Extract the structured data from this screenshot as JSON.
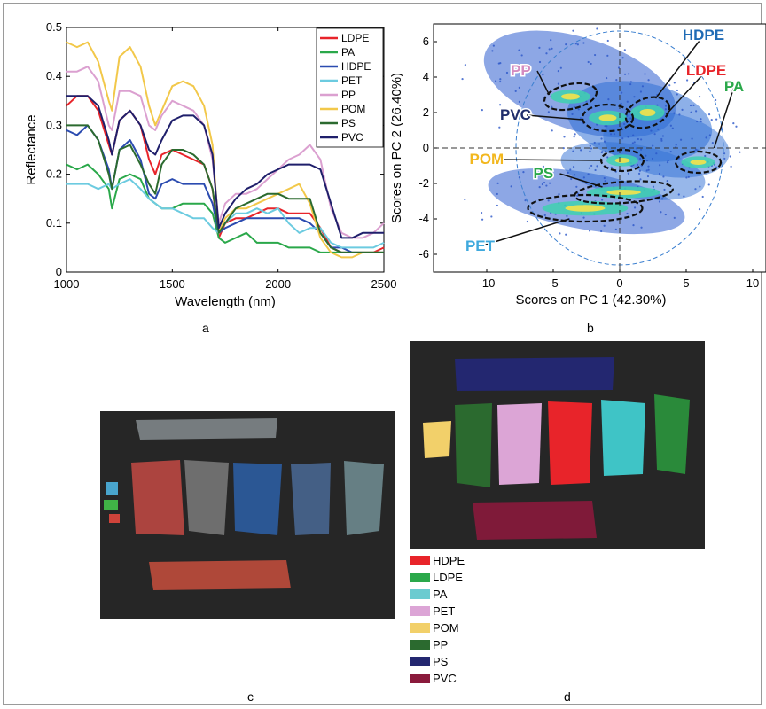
{
  "chart_data": [
    {
      "id": "a",
      "type": "line",
      "xlabel": "Wavelength (nm)",
      "ylabel": "Reflectance",
      "xlim": [
        1000,
        2500
      ],
      "ylim": [
        0,
        0.5
      ],
      "xticks": [
        1000,
        1500,
        2000,
        2500
      ],
      "yticks": [
        0,
        0.1,
        0.2,
        0.3,
        0.4,
        0.5
      ],
      "legend_position": "top-right",
      "x": [
        1000,
        1050,
        1100,
        1150,
        1200,
        1215,
        1250,
        1300,
        1350,
        1390,
        1420,
        1450,
        1500,
        1550,
        1600,
        1650,
        1690,
        1720,
        1750,
        1800,
        1850,
        1900,
        1950,
        2000,
        2050,
        2100,
        2150,
        2200,
        2250,
        2300,
        2350,
        2400,
        2450,
        2500
      ],
      "series": [
        {
          "name": "LDPE",
          "color": "#e8242a",
          "values": [
            0.34,
            0.36,
            0.36,
            0.33,
            0.26,
            0.24,
            0.31,
            0.33,
            0.3,
            0.23,
            0.2,
            0.24,
            0.25,
            0.24,
            0.23,
            0.22,
            0.17,
            0.07,
            0.1,
            0.11,
            0.11,
            0.12,
            0.13,
            0.13,
            0.12,
            0.12,
            0.12,
            0.09,
            0.05,
            0.04,
            0.04,
            0.04,
            0.04,
            0.05
          ]
        },
        {
          "name": "PA",
          "color": "#2aa84a",
          "values": [
            0.22,
            0.21,
            0.22,
            0.2,
            0.17,
            0.13,
            0.19,
            0.2,
            0.19,
            0.15,
            0.14,
            0.13,
            0.13,
            0.14,
            0.14,
            0.14,
            0.12,
            0.07,
            0.06,
            0.07,
            0.08,
            0.06,
            0.06,
            0.06,
            0.05,
            0.05,
            0.05,
            0.04,
            0.04,
            0.04,
            0.04,
            0.04,
            0.04,
            0.04
          ]
        },
        {
          "name": "HDPE",
          "color": "#2b4bb0",
          "values": [
            0.29,
            0.28,
            0.3,
            0.27,
            0.21,
            0.17,
            0.25,
            0.27,
            0.23,
            0.16,
            0.15,
            0.18,
            0.19,
            0.18,
            0.18,
            0.18,
            0.14,
            0.08,
            0.09,
            0.1,
            0.11,
            0.11,
            0.11,
            0.11,
            0.11,
            0.11,
            0.1,
            0.08,
            0.05,
            0.05,
            0.04,
            0.04,
            0.04,
            0.04
          ]
        },
        {
          "name": "PET",
          "color": "#6ccbe0",
          "values": [
            0.18,
            0.18,
            0.18,
            0.17,
            0.18,
            0.17,
            0.18,
            0.19,
            0.17,
            0.15,
            0.14,
            0.13,
            0.13,
            0.12,
            0.11,
            0.11,
            0.09,
            0.08,
            0.1,
            0.12,
            0.12,
            0.13,
            0.12,
            0.13,
            0.1,
            0.08,
            0.09,
            0.09,
            0.06,
            0.05,
            0.05,
            0.05,
            0.05,
            0.06
          ]
        },
        {
          "name": "PP",
          "color": "#dba0d0",
          "values": [
            0.41,
            0.41,
            0.42,
            0.39,
            0.3,
            0.29,
            0.37,
            0.37,
            0.36,
            0.3,
            0.29,
            0.32,
            0.35,
            0.34,
            0.33,
            0.3,
            0.23,
            0.1,
            0.14,
            0.16,
            0.16,
            0.17,
            0.19,
            0.21,
            0.23,
            0.24,
            0.26,
            0.23,
            0.13,
            0.08,
            0.07,
            0.07,
            0.08,
            0.1
          ]
        },
        {
          "name": "POM",
          "color": "#f2c84a",
          "values": [
            0.47,
            0.46,
            0.47,
            0.43,
            0.35,
            0.33,
            0.44,
            0.46,
            0.42,
            0.34,
            0.3,
            0.33,
            0.38,
            0.39,
            0.38,
            0.34,
            0.26,
            0.08,
            0.11,
            0.13,
            0.13,
            0.14,
            0.15,
            0.16,
            0.17,
            0.18,
            0.14,
            0.07,
            0.04,
            0.03,
            0.03,
            0.04,
            0.04,
            0.04
          ]
        },
        {
          "name": "PS",
          "color": "#2b6a2f",
          "values": [
            0.3,
            0.3,
            0.3,
            0.27,
            0.2,
            0.17,
            0.25,
            0.26,
            0.22,
            0.18,
            0.16,
            0.22,
            0.25,
            0.25,
            0.24,
            0.22,
            0.17,
            0.08,
            0.1,
            0.13,
            0.14,
            0.15,
            0.16,
            0.16,
            0.15,
            0.15,
            0.15,
            0.08,
            0.05,
            0.04,
            0.04,
            0.04,
            0.04,
            0.04
          ]
        },
        {
          "name": "PVC",
          "color": "#1f1f6b",
          "values": [
            0.36,
            0.36,
            0.36,
            0.34,
            0.27,
            0.24,
            0.31,
            0.33,
            0.3,
            0.25,
            0.24,
            0.27,
            0.31,
            0.32,
            0.32,
            0.3,
            0.24,
            0.09,
            0.12,
            0.15,
            0.17,
            0.18,
            0.2,
            0.21,
            0.22,
            0.22,
            0.22,
            0.21,
            0.14,
            0.07,
            0.07,
            0.08,
            0.08,
            0.08
          ]
        }
      ]
    },
    {
      "id": "b",
      "type": "scatter",
      "xlabel": "Scores on PC 1 (42.30%)",
      "ylabel": "Scores on PC 2 (26.40%)",
      "xlim": [
        -14,
        11
      ],
      "ylim": [
        -7,
        7
      ],
      "xticks": [
        -10,
        -5,
        0,
        5,
        10
      ],
      "yticks": [
        -6,
        -4,
        -2,
        0,
        2,
        4,
        6
      ],
      "clusters": [
        {
          "name": "PP",
          "color": "#d58bbf",
          "cx": -3.7,
          "cy": 2.9,
          "rx": 2.0,
          "ry": 0.7
        },
        {
          "name": "PVC",
          "color": "#1f2d6b",
          "cx": -0.9,
          "cy": 1.7,
          "rx": 1.9,
          "ry": 0.75
        },
        {
          "name": "HDPE",
          "color": "#1f6bb5",
          "cx": 2.1,
          "cy": 2.0,
          "rx": 1.7,
          "ry": 0.8
        },
        {
          "name": "LDPE",
          "color": "#e8242a",
          "cx": 2.1,
          "cy": 2.0,
          "rx": 1.7,
          "ry": 0.8
        },
        {
          "name": "PA",
          "color": "#2aa84a",
          "cx": 5.9,
          "cy": -0.8,
          "rx": 1.7,
          "ry": 0.6
        },
        {
          "name": "POM",
          "color": "#f2b71e",
          "cx": 0.2,
          "cy": -0.7,
          "rx": 1.6,
          "ry": 0.6
        },
        {
          "name": "PS",
          "color": "#2aa84a",
          "cx": 0.3,
          "cy": -2.5,
          "rx": 3.7,
          "ry": 0.6
        },
        {
          "name": "PET",
          "color": "#3fa9dd",
          "cx": -2.6,
          "cy": -3.4,
          "rx": 4.3,
          "ry": 0.75
        }
      ]
    }
  ],
  "panel_labels": {
    "a": "a",
    "b": "b",
    "c": "c",
    "d": "d"
  },
  "segmentation_legend": [
    {
      "name": "HDPE",
      "color": "#e8242a"
    },
    {
      "name": "LDPE",
      "color": "#2aa84a"
    },
    {
      "name": "PA",
      "color": "#6ccbd0"
    },
    {
      "name": "PET",
      "color": "#dca5d6"
    },
    {
      "name": "POM",
      "color": "#f2d06a"
    },
    {
      "name": "PP",
      "color": "#2b6a2f"
    },
    {
      "name": "PS",
      "color": "#232770"
    },
    {
      "name": "PVC",
      "color": "#8a1a3c"
    }
  ]
}
